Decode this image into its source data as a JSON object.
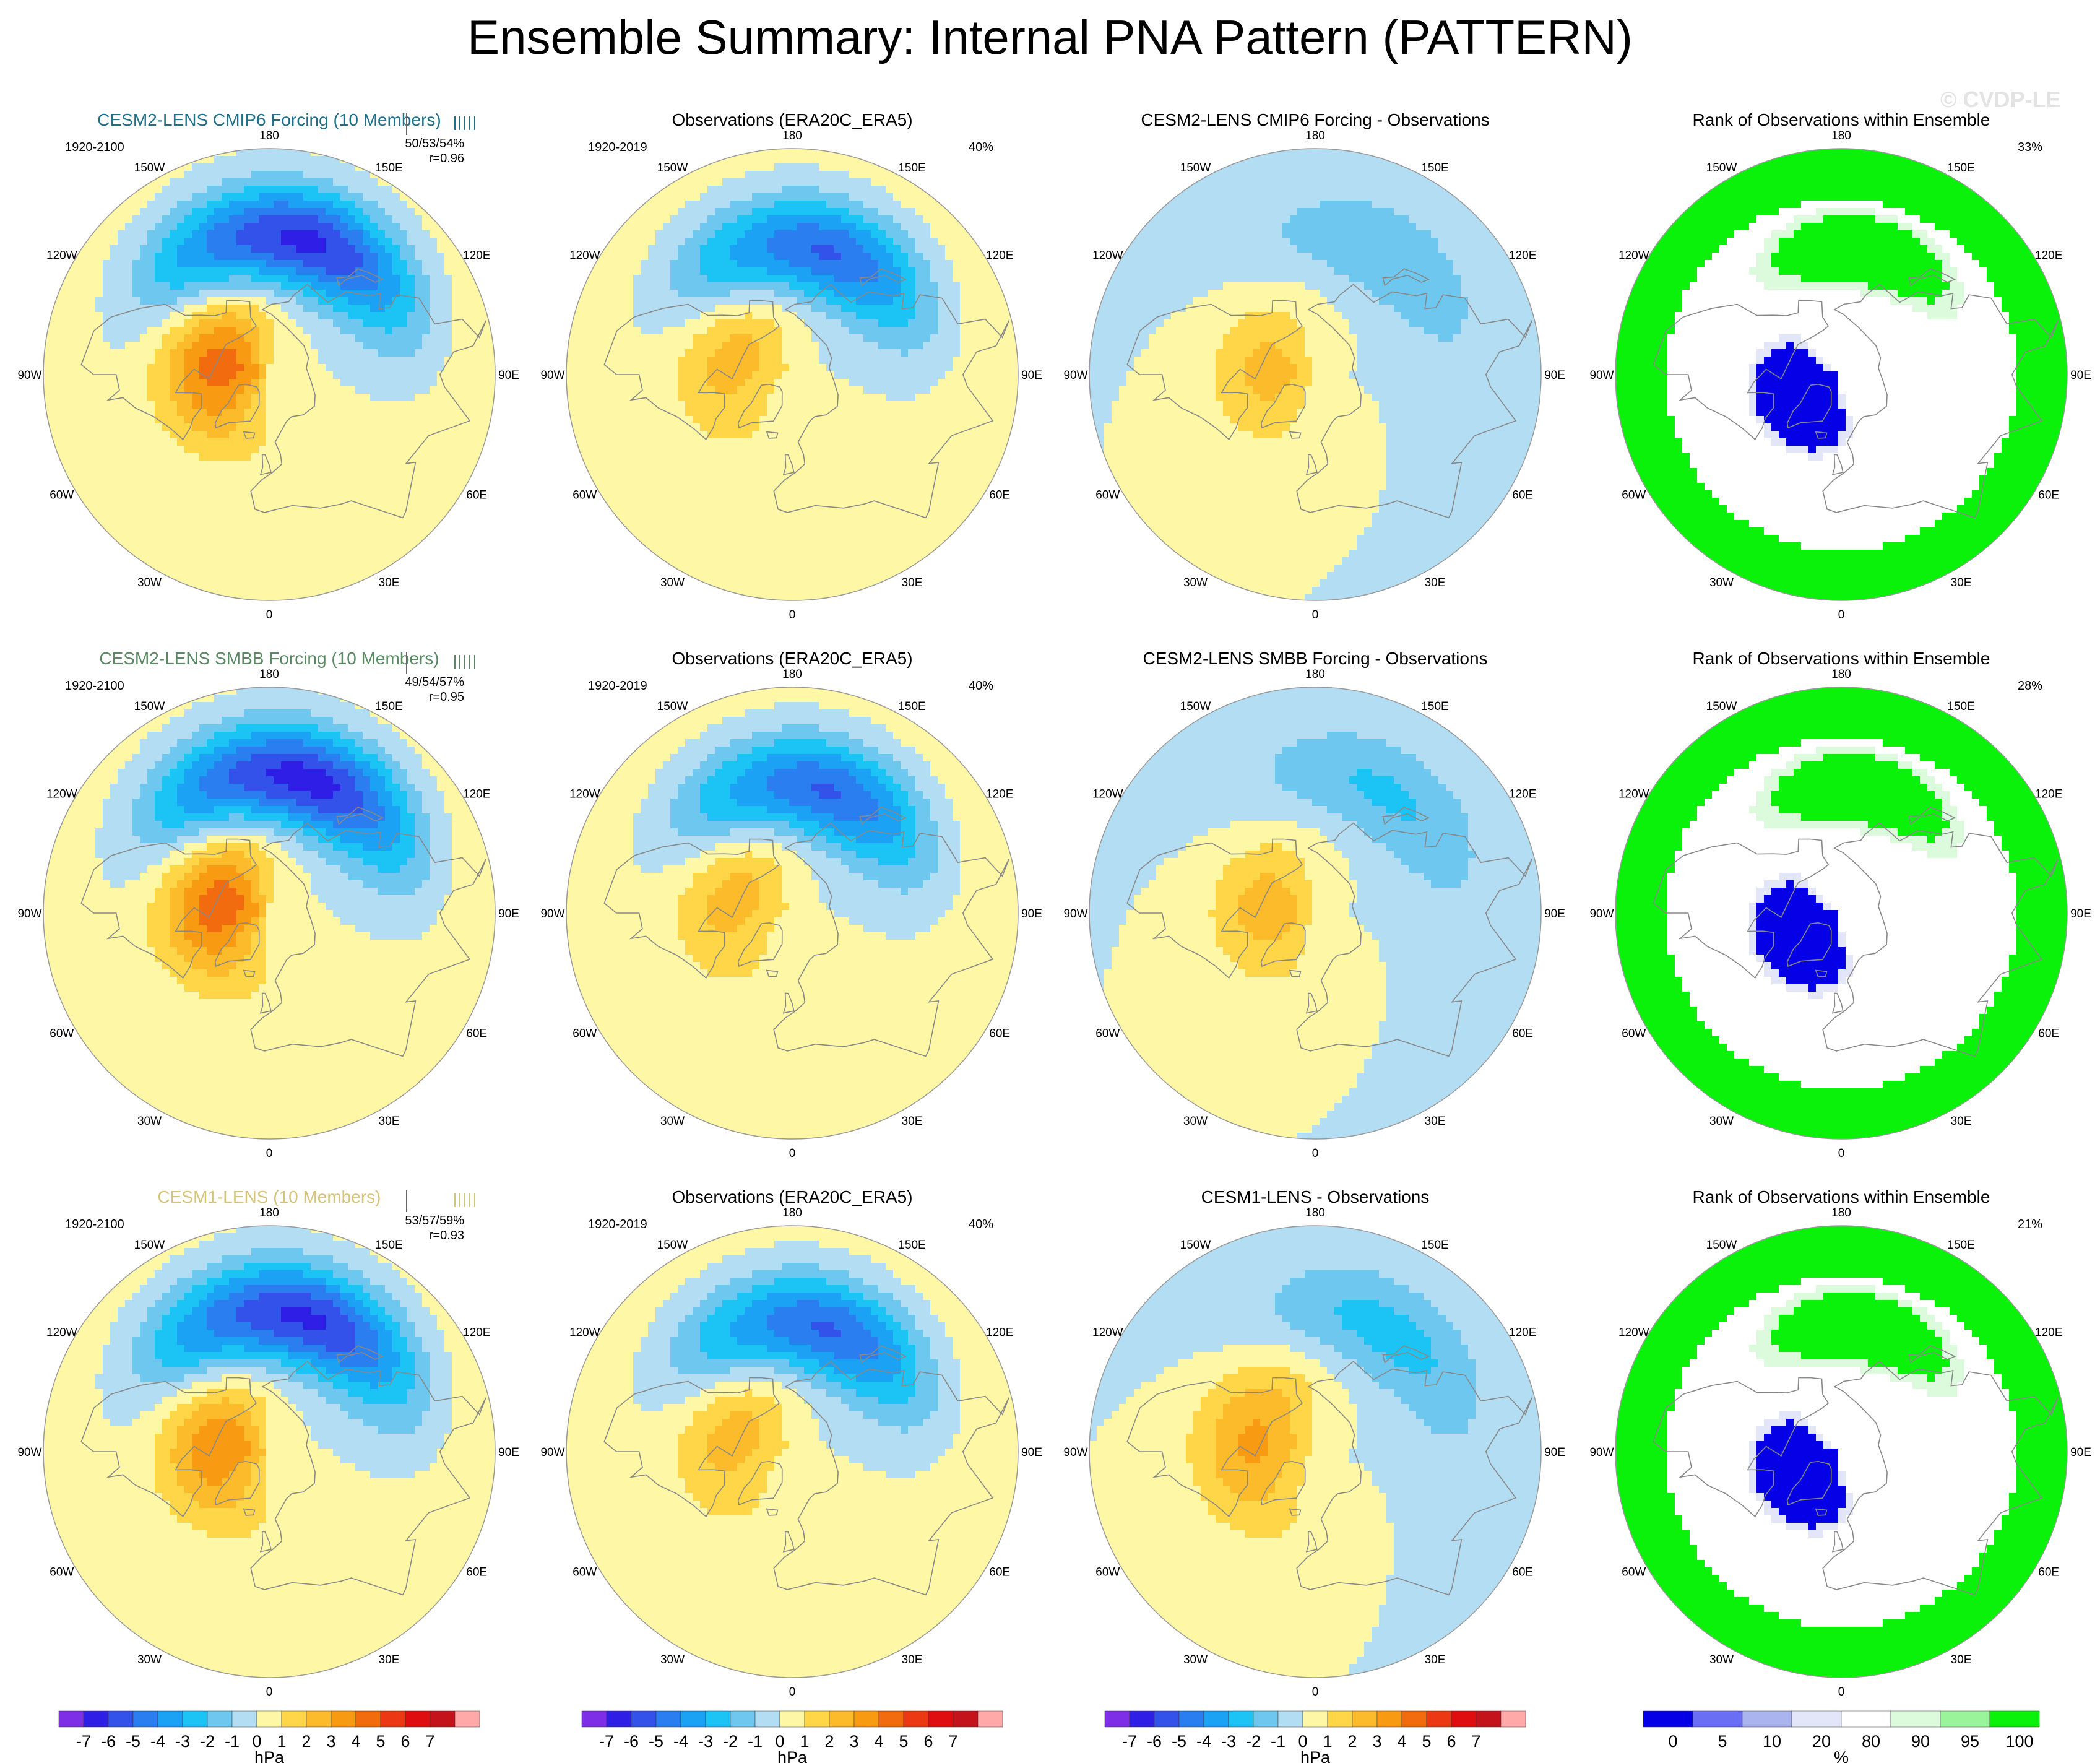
{
  "title": "Ensemble Summary: Internal PNA Pattern (PATTERN)",
  "watermark": "© CVDP-LE",
  "colors": {
    "neg7": "#7e2ee6",
    "neg6": "#2e1ee6",
    "neg5": "#3352ea",
    "neg4": "#2a7ef0",
    "neg3": "#1ba2f5",
    "neg2": "#1cc4f6",
    "neg1": "#6ec7ef",
    "neg0": "#b3ddf2",
    "pos0": "#fef7a6",
    "pos1": "#fed648",
    "pos2": "#fcbb2a",
    "pos3": "#f99b12",
    "pos4": "#f26b0f",
    "pos5": "#ed3814",
    "pos6": "#e00d10",
    "pos7": "#c4131a",
    "pos8": "#ffaaa8",
    "rank0": "#0500e6",
    "rank5": "#6a6ef4",
    "rank10": "#aab5f0",
    "rank20": "#e2e6f8",
    "rank80": "#ffffff",
    "rank90": "#dcfadc",
    "rank95": "#9af49a",
    "rank100": "#0af20a",
    "coast": "#888888"
  },
  "rows": [
    {
      "ensemble": {
        "title": "CESM2-LENS CMIP6 Forcing (10 Members)",
        "title_color": "#1f6f8a",
        "period": "1920-2100",
        "stats": "50/53/54%",
        "corr": "r=0.96"
      },
      "observations": {
        "title": "Observations (ERA20C_ERA5)",
        "period": "1920-2019",
        "pct": "40%"
      },
      "difference": {
        "title": "CESM2-LENS CMIP6 Forcing - Observations"
      },
      "rank": {
        "title": "Rank of Observations within Ensemble",
        "pct": "33%"
      }
    },
    {
      "ensemble": {
        "title": "CESM2-LENS SMBB Forcing (10 Members)",
        "title_color": "#5a8a64",
        "period": "1920-2100",
        "stats": "49/54/57%",
        "corr": "r=0.95"
      },
      "observations": {
        "title": "Observations (ERA20C_ERA5)",
        "period": "1920-2019",
        "pct": "40%"
      },
      "difference": {
        "title": "CESM2-LENS SMBB Forcing - Observations"
      },
      "rank": {
        "title": "Rank of Observations within Ensemble",
        "pct": "28%"
      }
    },
    {
      "ensemble": {
        "title": "CESM1-LENS (10 Members)",
        "title_color": "#d6c37a",
        "period": "1920-2100",
        "stats": "53/57/59%",
        "corr": "r=0.93"
      },
      "observations": {
        "title": "Observations (ERA20C_ERA5)",
        "period": "1920-2019",
        "pct": "40%"
      },
      "difference": {
        "title": "CESM1-LENS - Observations"
      },
      "rank": {
        "title": "Rank of Observations within Ensemble",
        "pct": "21%"
      }
    }
  ],
  "chart_data": {
    "type": "heatmap",
    "projection": "north polar stereographic",
    "longitude_labels": [
      "180",
      "150E",
      "120E",
      "90E",
      "60E",
      "30E",
      "0",
      "30W",
      "60W",
      "90W",
      "120W",
      "150W"
    ],
    "colorbars": {
      "hpa": {
        "label": "hPa",
        "ticks": [
          "-7",
          "-6",
          "-5",
          "-4",
          "-3",
          "-2",
          "-1",
          "0",
          "1",
          "2",
          "3",
          "4",
          "5",
          "6",
          "7"
        ],
        "levels": [
          -7,
          -6,
          -5,
          -4,
          -3,
          -2,
          -1,
          0,
          1,
          2,
          3,
          4,
          5,
          6,
          7
        ]
      },
      "rank": {
        "label": "%",
        "ticks": [
          "0",
          "5",
          "10",
          "20",
          "80",
          "90",
          "95",
          "100"
        ],
        "levels": [
          0,
          5,
          10,
          20,
          80,
          90,
          95,
          100
        ]
      }
    },
    "panels": [
      {
        "id": "r1-ens",
        "kind": "pattern",
        "low_center": [
          35,
          165
        ],
        "low_min": -6.6,
        "high_center": [
          70,
          -100
        ],
        "high_max": 4.5,
        "pac_minor": -1.0
      },
      {
        "id": "r1-obs",
        "kind": "pattern",
        "low_center": [
          40,
          165
        ],
        "low_min": -5.5,
        "high_center": [
          65,
          -110
        ],
        "high_max": 2.5,
        "pac_minor": -0.8
      },
      {
        "id": "r1-diff",
        "kind": "difference",
        "low_center": [
          35,
          150
        ],
        "low_min": -1.9,
        "high_center": [
          72,
          -95
        ],
        "high_max": 2.4
      },
      {
        "id": "r1-rank",
        "kind": "rank",
        "blue_center": [
          72,
          -60
        ],
        "green_center": [
          40,
          170
        ]
      },
      {
        "id": "r2-ens",
        "kind": "pattern",
        "low_center": [
          35,
          165
        ],
        "low_min": -6.8,
        "high_center": [
          70,
          -100
        ],
        "high_max": 4.6,
        "pac_minor": -1.0
      },
      {
        "id": "r2-obs",
        "kind": "pattern",
        "low_center": [
          40,
          165
        ],
        "low_min": -5.5,
        "high_center": [
          65,
          -110
        ],
        "high_max": 2.5,
        "pac_minor": -0.8
      },
      {
        "id": "r2-diff",
        "kind": "difference",
        "low_center": [
          35,
          150
        ],
        "low_min": -2.2,
        "high_center": [
          72,
          -95
        ],
        "high_max": 2.6
      },
      {
        "id": "r2-rank",
        "kind": "rank",
        "blue_center": [
          72,
          -60
        ],
        "green_center": [
          40,
          170
        ]
      },
      {
        "id": "r3-ens",
        "kind": "pattern",
        "low_center": [
          35,
          165
        ],
        "low_min": -6.5,
        "high_center": [
          70,
          -95
        ],
        "high_max": 3.8,
        "pac_minor": -1.0
      },
      {
        "id": "r3-obs",
        "kind": "pattern",
        "low_center": [
          40,
          165
        ],
        "low_min": -5.5,
        "high_center": [
          65,
          -110
        ],
        "high_max": 2.5,
        "pac_minor": -0.8
      },
      {
        "id": "r3-diff",
        "kind": "difference",
        "low_center": [
          35,
          150
        ],
        "low_min": -2.5,
        "high_center": [
          65,
          -100
        ],
        "high_max": 3.2
      },
      {
        "id": "r3-rank",
        "kind": "rank",
        "blue_center": [
          72,
          -60
        ],
        "green_center": [
          40,
          170
        ]
      }
    ]
  }
}
